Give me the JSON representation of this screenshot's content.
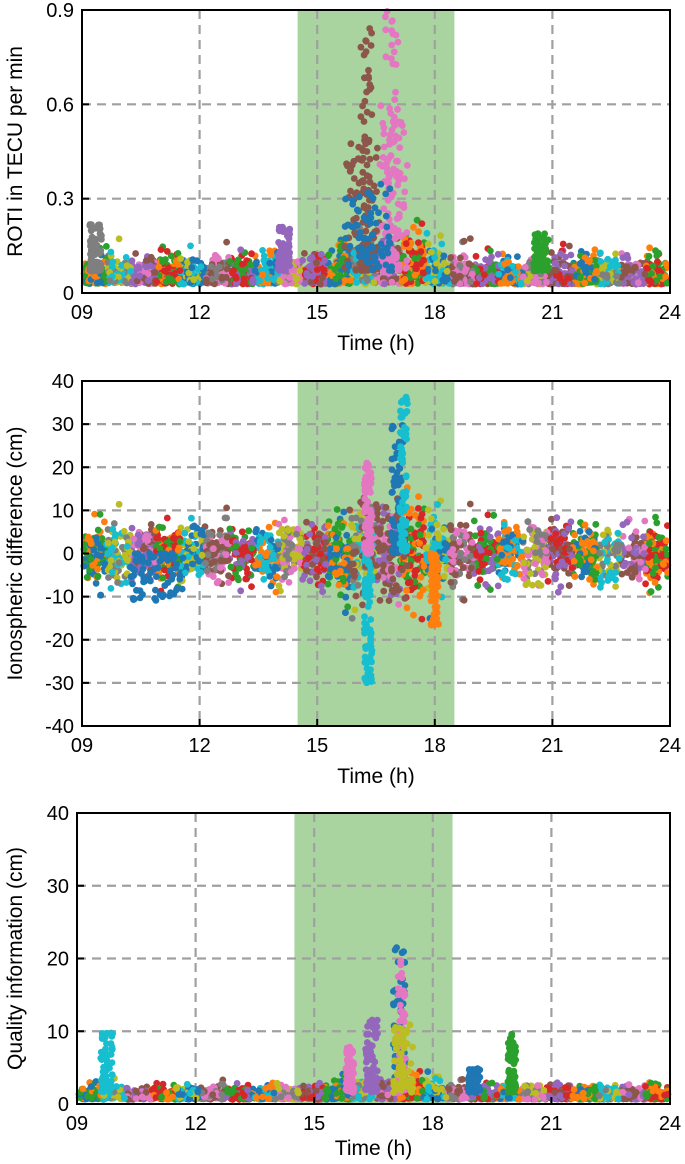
{
  "chart_data": [
    {
      "type": "scatter",
      "title": "",
      "xlabel": "Time (h)",
      "ylabel": "ROTI in TECU per min",
      "xlim": [
        9,
        24
      ],
      "ylim": [
        0,
        0.9
      ],
      "xticks": [
        9,
        12,
        15,
        18,
        21,
        24
      ],
      "xtick_labels": [
        "09",
        "12",
        "15",
        "18",
        "21",
        "24"
      ],
      "yticks": [
        0,
        0.3,
        0.6,
        0.9
      ],
      "ytick_labels": [
        "0",
        "0.3",
        "0.6",
        "0.9"
      ],
      "grid": true,
      "shaded_interval": [
        14.5,
        18.5
      ],
      "shade_color": "#a9d4a0",
      "baseline": 0.07,
      "noise": 0.045,
      "bursts": [
        {
          "x": [
            15.7,
            16.6
          ],
          "peak": 0.5,
          "series": "brown"
        },
        {
          "x": [
            16.6,
            17.3
          ],
          "peak": 0.62,
          "series": "pink"
        },
        {
          "x": [
            16.1,
            16.4
          ],
          "peak": 0.85,
          "series": "brown"
        },
        {
          "x": [
            16.7,
            17.1
          ],
          "peak": 0.9,
          "series": "pink"
        },
        {
          "x": [
            15.7,
            16.9
          ],
          "peak": 0.35,
          "series": "blue"
        },
        {
          "x": [
            9.2,
            9.5
          ],
          "peak": 0.22,
          "series": "gray"
        },
        {
          "x": [
            14.0,
            14.3
          ],
          "peak": 0.21,
          "series": "purple"
        },
        {
          "x": [
            20.5,
            20.9
          ],
          "peak": 0.19,
          "series": "green"
        }
      ]
    },
    {
      "type": "scatter",
      "title": "",
      "xlabel": "Time (h)",
      "ylabel": "Ionospheric difference (cm)",
      "xlim": [
        9,
        24
      ],
      "ylim": [
        -40,
        40
      ],
      "xticks": [
        9,
        12,
        15,
        18,
        21,
        24
      ],
      "xtick_labels": [
        "09",
        "12",
        "15",
        "18",
        "21",
        "24"
      ],
      "yticks": [
        -40,
        -30,
        -20,
        -10,
        0,
        10,
        20,
        30,
        40
      ],
      "ytick_labels": [
        "-40",
        "-30",
        "-20",
        "-10",
        "0",
        "10",
        "20",
        "30",
        "40"
      ],
      "grid": true,
      "shaded_interval": [
        14.5,
        18.5
      ],
      "shade_color": "#a9d4a0",
      "baseline": 0,
      "noise": 3.2,
      "bursts": [
        {
          "x": [
            15.8,
            17.3
          ],
          "peak": 14,
          "series": "brown",
          "symmetric": true
        },
        {
          "x": [
            16.9,
            17.2
          ],
          "peak": 30,
          "series": "blue"
        },
        {
          "x": [
            17.1,
            17.3
          ],
          "peak": 38,
          "series": "cyan"
        },
        {
          "x": [
            16.2,
            16.4
          ],
          "peak": -30,
          "series": "cyan"
        },
        {
          "x": [
            16.2,
            16.4
          ],
          "peak": 21,
          "series": "pink"
        },
        {
          "x": [
            17.9,
            18.1
          ],
          "peak": -17,
          "series": "orange"
        },
        {
          "x": [
            10.2,
            11.6
          ],
          "peak": -11,
          "series": "blue"
        }
      ]
    },
    {
      "type": "scatter",
      "title": "",
      "xlabel": "Time (h)",
      "ylabel": "Quality information (cm)",
      "xlim": [
        9,
        24
      ],
      "ylim": [
        0,
        40
      ],
      "xticks": [
        9,
        12,
        15,
        18,
        21,
        24
      ],
      "xtick_labels": [
        "09",
        "12",
        "15",
        "18",
        "21",
        "24"
      ],
      "yticks": [
        0,
        10,
        20,
        30,
        40
      ],
      "ytick_labels": [
        "0",
        "10",
        "20",
        "30",
        "40"
      ],
      "grid": true,
      "shaded_interval": [
        14.5,
        18.5
      ],
      "shade_color": "#a9d4a0",
      "baseline": 1.6,
      "noise": 0.9,
      "bursts": [
        {
          "x": [
            9.6,
            9.9
          ],
          "peak": 10,
          "series": "cyan"
        },
        {
          "x": [
            17.0,
            17.3
          ],
          "peak": 22,
          "series": "blue"
        },
        {
          "x": [
            17.1,
            17.3
          ],
          "peak": 20,
          "series": "pink"
        },
        {
          "x": [
            16.3,
            16.6
          ],
          "peak": 12,
          "series": "purple"
        },
        {
          "x": [
            15.8,
            16.0
          ],
          "peak": 8,
          "series": "pink"
        },
        {
          "x": [
            17.0,
            17.5
          ],
          "peak": 11,
          "series": "olive"
        },
        {
          "x": [
            19.9,
            20.1
          ],
          "peak": 10,
          "series": "green"
        },
        {
          "x": [
            18.9,
            19.2
          ],
          "peak": 5,
          "series": "blue"
        }
      ]
    }
  ],
  "series_colors": {
    "blue": "#1f77b4",
    "orange": "#ff7f0e",
    "green": "#2ca02c",
    "red": "#d62728",
    "purple": "#9467bd",
    "brown": "#8c564b",
    "pink": "#e377c2",
    "gray": "#7f7f7f",
    "olive": "#bcbd22",
    "cyan": "#17becf"
  }
}
